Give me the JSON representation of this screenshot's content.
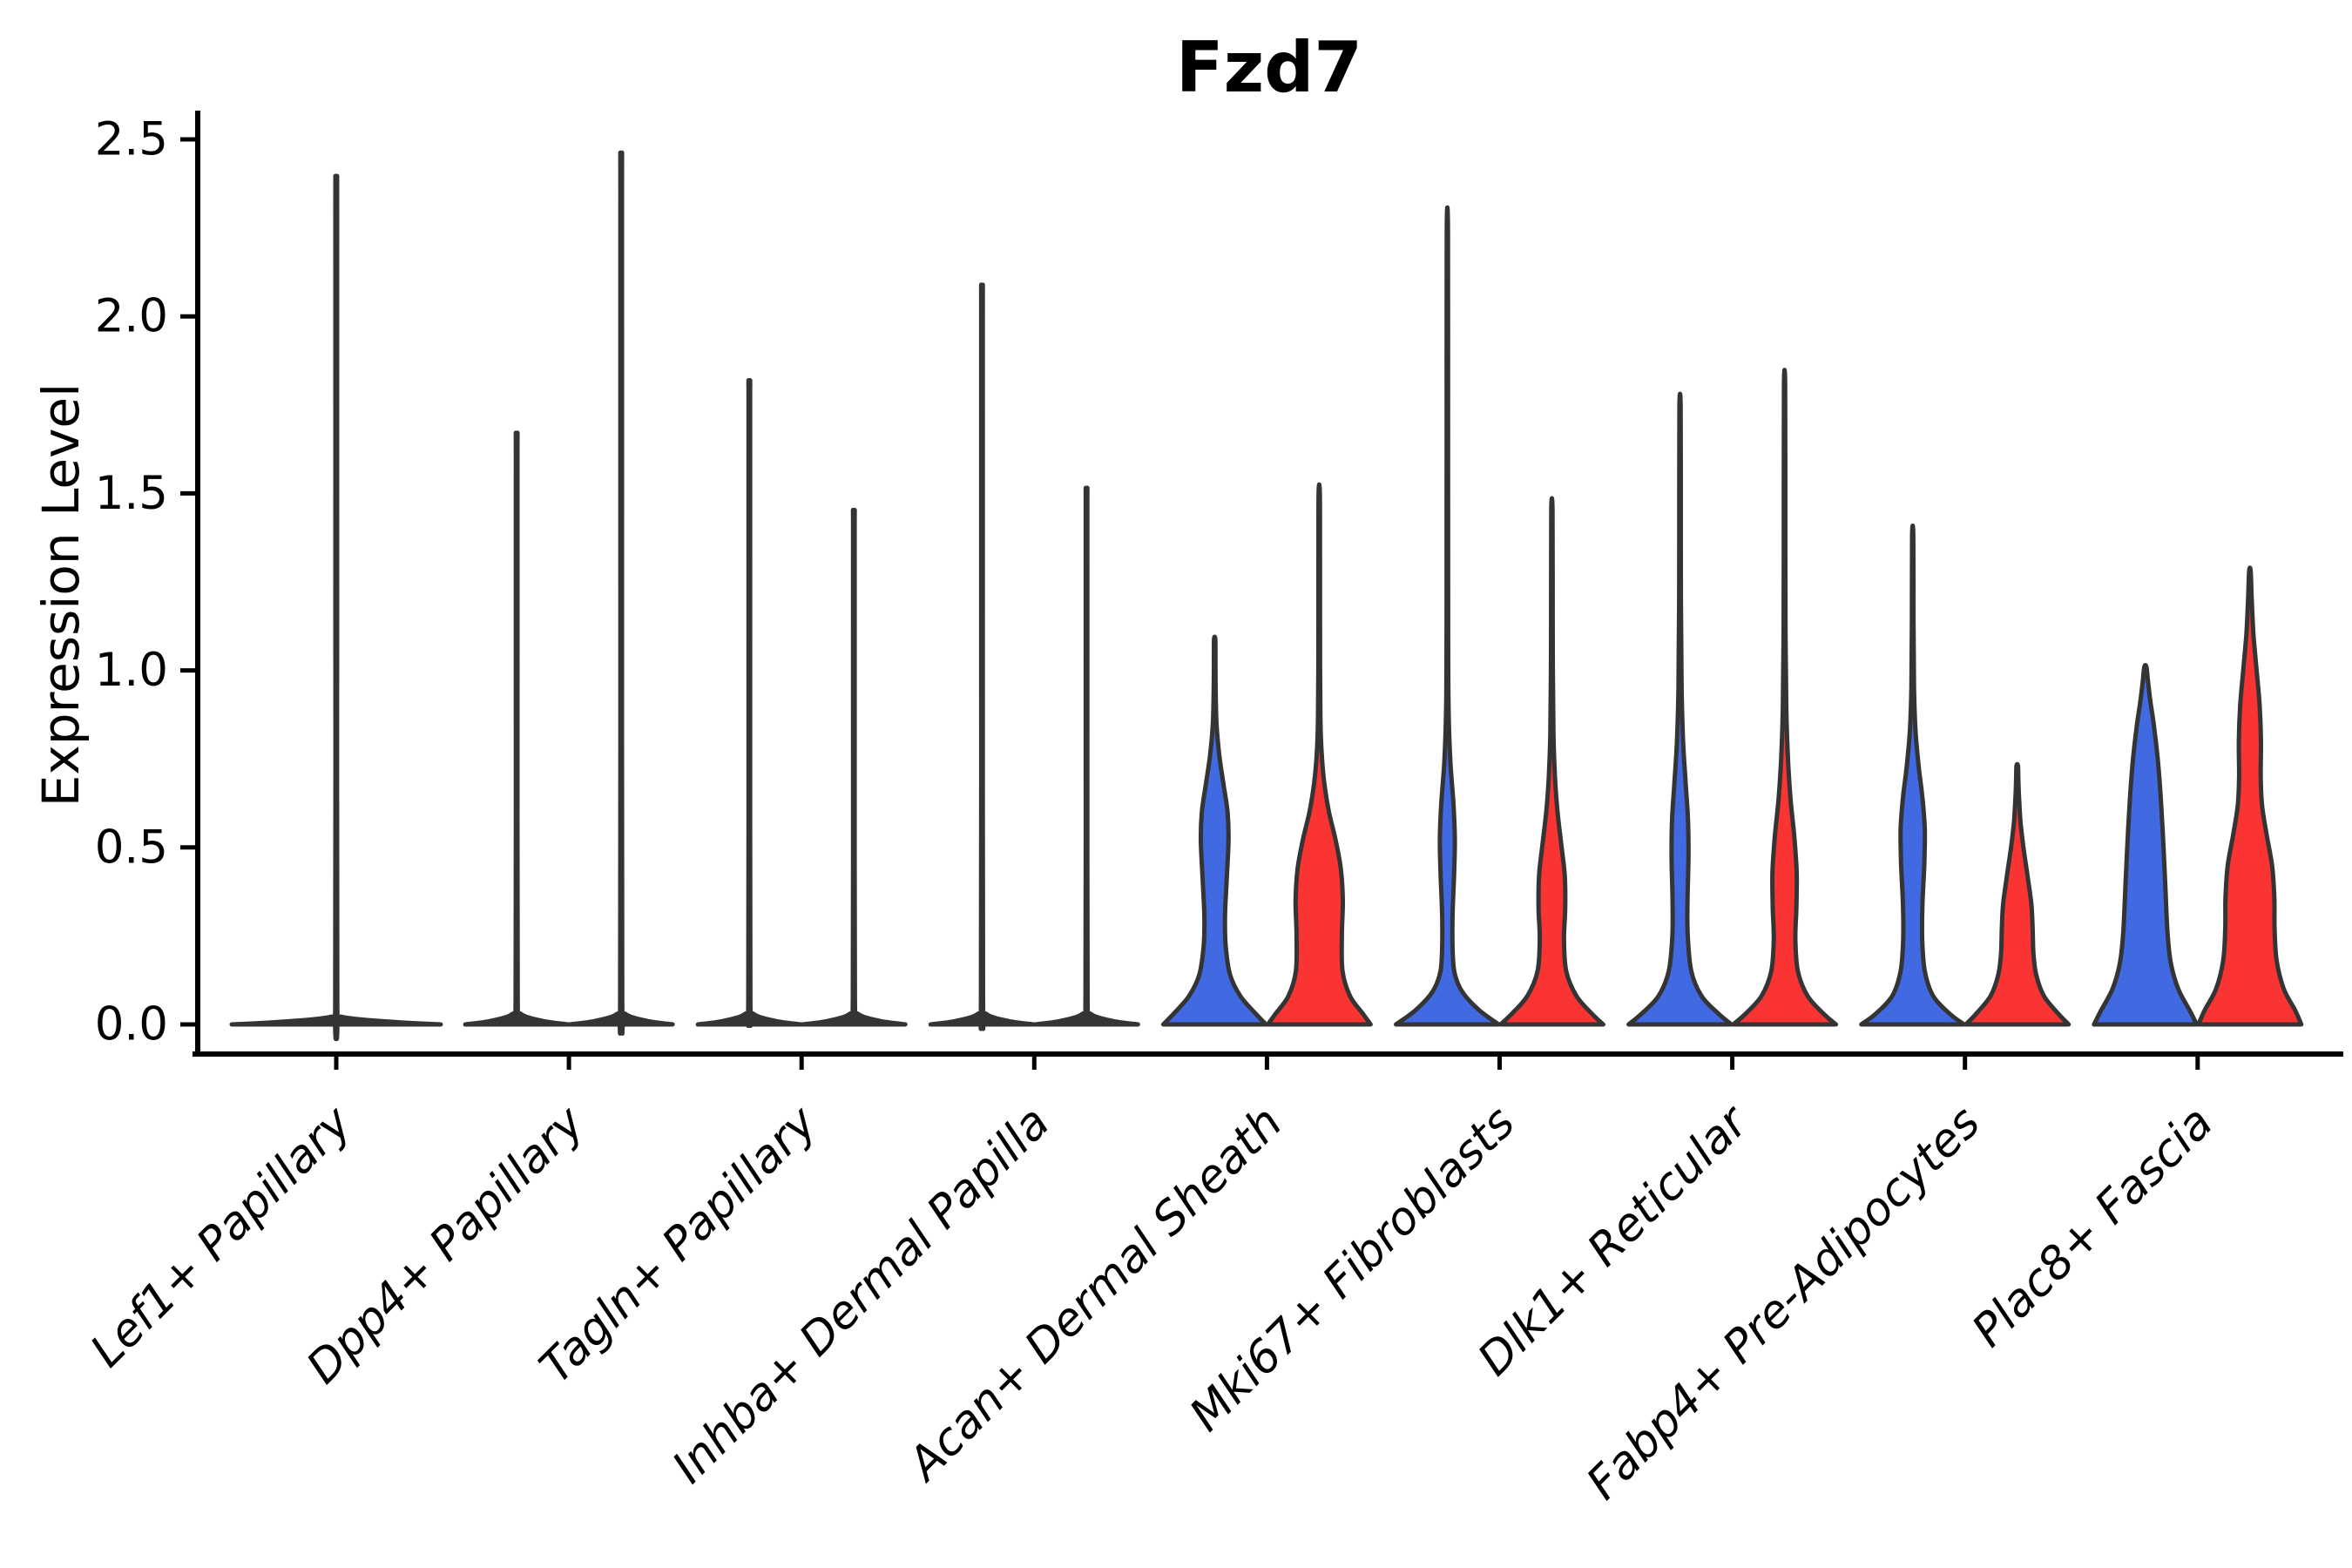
{
  "title": "Fzd7",
  "y_axis": {
    "label": "Expression Level",
    "tick_labels": [
      "0.0",
      "0.5",
      "1.0",
      "1.5",
      "2.0",
      "2.5"
    ],
    "tick_values": [
      0.0,
      0.5,
      1.0,
      1.5,
      2.0,
      2.5
    ],
    "range": [
      0.0,
      2.5
    ]
  },
  "x_axis": {
    "categories": [
      "Lef1+ Papillary",
      "Dpp4+ Papillary",
      "Tagln+ Papillary",
      "Inhba+ Dermal Papilla",
      "Acan+ Dermal Sheath",
      "Mki67+ Fibroblasts",
      "Dlk1+ Reticular",
      "Fabp4+ Pre-Adipocytes",
      "Plac8+ Fascia"
    ]
  },
  "style": {
    "blue": "#4169E1",
    "red": "#FA3333",
    "outline": "#343434",
    "spike_fill": "#343434",
    "background": "#ffffff",
    "text_color": "#000000"
  },
  "chart_data": {
    "type": "violin",
    "title": "Fzd7",
    "xlabel": "",
    "ylabel": "Expression Level",
    "ylim": [
      0.0,
      2.5
    ],
    "yticks": [
      0.0,
      0.5,
      1.0,
      1.5,
      2.0,
      2.5
    ],
    "grid": false,
    "legend": "none",
    "categories": [
      "Lef1+ Papillary",
      "Dpp4+ Papillary",
      "Tagln+ Papillary",
      "Inhba+ Dermal Papilla",
      "Acan+ Dermal Sheath",
      "Mki67+ Fibroblasts",
      "Dlk1+ Reticular",
      "Fabp4+ Pre-Adipocytes",
      "Plac8+ Fascia"
    ],
    "violins": [
      {
        "category_index": 0,
        "category": "Lef1+ Papillary",
        "position": "center",
        "color": "#343434",
        "max_expression": 2.34,
        "profile": [
          [
            0,
            1.0
          ],
          [
            0.008,
            0.5
          ],
          [
            0.022,
            0.05
          ],
          [
            0.05,
            0.01
          ],
          [
            1.17,
            0.008
          ],
          [
            2.3,
            0.008
          ],
          [
            2.34,
            0.007
          ]
        ]
      },
      {
        "category_index": 1,
        "category": "Dpp4+ Papillary",
        "position": "left",
        "color": "#343434",
        "max_expression": 1.64,
        "profile": [
          [
            0,
            1.0
          ],
          [
            0.01,
            0.5
          ],
          [
            0.03,
            0.08
          ],
          [
            0.07,
            0.02
          ],
          [
            0.82,
            0.016
          ],
          [
            1.6,
            0.016
          ],
          [
            1.64,
            0.013
          ]
        ]
      },
      {
        "category_index": 1,
        "category": "Dpp4+ Papillary",
        "position": "right",
        "color": "#343434",
        "max_expression": 2.41,
        "profile": [
          [
            0,
            1.0
          ],
          [
            0.01,
            0.5
          ],
          [
            0.03,
            0.08
          ],
          [
            0.07,
            0.02
          ],
          [
            1.2,
            0.016
          ],
          [
            2.36,
            0.016
          ],
          [
            2.41,
            0.013
          ]
        ]
      },
      {
        "category_index": 2,
        "category": "Tagln+ Papillary",
        "position": "left",
        "color": "#343434",
        "max_expression": 1.79,
        "profile": [
          [
            0,
            1.0
          ],
          [
            0.01,
            0.5
          ],
          [
            0.03,
            0.08
          ],
          [
            0.07,
            0.02
          ],
          [
            0.9,
            0.016
          ],
          [
            1.74,
            0.016
          ],
          [
            1.79,
            0.013
          ]
        ]
      },
      {
        "category_index": 2,
        "category": "Tagln+ Papillary",
        "position": "right",
        "color": "#343434",
        "max_expression": 1.43,
        "profile": [
          [
            0,
            1.0
          ],
          [
            0.01,
            0.5
          ],
          [
            0.03,
            0.08
          ],
          [
            0.07,
            0.02
          ],
          [
            0.72,
            0.016
          ],
          [
            1.39,
            0.016
          ],
          [
            1.43,
            0.013
          ]
        ]
      },
      {
        "category_index": 3,
        "category": "Inhba+ Dermal Papilla",
        "position": "left",
        "color": "#343434",
        "max_expression": 2.05,
        "profile": [
          [
            0,
            1.0
          ],
          [
            0.01,
            0.5
          ],
          [
            0.03,
            0.08
          ],
          [
            0.07,
            0.02
          ],
          [
            1.02,
            0.016
          ],
          [
            2.0,
            0.016
          ],
          [
            2.05,
            0.013
          ]
        ]
      },
      {
        "category_index": 3,
        "category": "Inhba+ Dermal Papilla",
        "position": "right",
        "color": "#343434",
        "max_expression": 1.49,
        "profile": [
          [
            0,
            1.0
          ],
          [
            0.01,
            0.5
          ],
          [
            0.03,
            0.08
          ],
          [
            0.07,
            0.02
          ],
          [
            0.75,
            0.016
          ],
          [
            1.45,
            0.016
          ],
          [
            1.49,
            0.013
          ]
        ]
      },
      {
        "category_index": 4,
        "category": "Acan+ Dermal Sheath",
        "position": "left",
        "color": "#4169E1",
        "max_expression": 1.09,
        "profile": [
          [
            0,
            1.0
          ],
          [
            0.03,
            0.8
          ],
          [
            0.08,
            0.5
          ],
          [
            0.14,
            0.3
          ],
          [
            0.22,
            0.215
          ],
          [
            0.3,
            0.2
          ],
          [
            0.4,
            0.23
          ],
          [
            0.52,
            0.27
          ],
          [
            0.6,
            0.25
          ],
          [
            0.68,
            0.17
          ],
          [
            0.76,
            0.09
          ],
          [
            0.85,
            0.035
          ],
          [
            0.95,
            0.018
          ],
          [
            1.05,
            0.015
          ],
          [
            1.09,
            0.012
          ]
        ]
      },
      {
        "category_index": 4,
        "category": "Acan+ Dermal Sheath",
        "position": "right",
        "color": "#FA3333",
        "max_expression": 1.5,
        "profile": [
          [
            0,
            1.0
          ],
          [
            0.03,
            0.85
          ],
          [
            0.08,
            0.6
          ],
          [
            0.15,
            0.455
          ],
          [
            0.25,
            0.44
          ],
          [
            0.35,
            0.46
          ],
          [
            0.44,
            0.42
          ],
          [
            0.52,
            0.32
          ],
          [
            0.6,
            0.19
          ],
          [
            0.68,
            0.1
          ],
          [
            0.76,
            0.05
          ],
          [
            0.85,
            0.025
          ],
          [
            1.0,
            0.017
          ],
          [
            1.3,
            0.015
          ],
          [
            1.5,
            0.012
          ]
        ]
      },
      {
        "category_index": 5,
        "category": "Mki67+ Fibroblasts",
        "position": "left",
        "color": "#4169E1",
        "max_expression": 2.24,
        "profile": [
          [
            0,
            1.0
          ],
          [
            0.04,
            0.62
          ],
          [
            0.09,
            0.3
          ],
          [
            0.14,
            0.15
          ],
          [
            0.2,
            0.105
          ],
          [
            0.3,
            0.1
          ],
          [
            0.42,
            0.13
          ],
          [
            0.52,
            0.145
          ],
          [
            0.62,
            0.12
          ],
          [
            0.74,
            0.06
          ],
          [
            0.88,
            0.025
          ],
          [
            1.1,
            0.016
          ],
          [
            1.7,
            0.014
          ],
          [
            2.24,
            0.012
          ]
        ]
      },
      {
        "category_index": 5,
        "category": "Mki67+ Fibroblasts",
        "position": "right",
        "color": "#FA3333",
        "max_expression": 1.46,
        "profile": [
          [
            0,
            1.0
          ],
          [
            0.03,
            0.78
          ],
          [
            0.08,
            0.48
          ],
          [
            0.15,
            0.28
          ],
          [
            0.24,
            0.235
          ],
          [
            0.33,
            0.26
          ],
          [
            0.42,
            0.25
          ],
          [
            0.5,
            0.19
          ],
          [
            0.6,
            0.11
          ],
          [
            0.7,
            0.06
          ],
          [
            0.82,
            0.03
          ],
          [
            1.0,
            0.018
          ],
          [
            1.25,
            0.015
          ],
          [
            1.46,
            0.012
          ]
        ]
      },
      {
        "category_index": 6,
        "category": "Dlk1+ Reticular",
        "position": "left",
        "color": "#4169E1",
        "max_expression": 1.75,
        "profile": [
          [
            0,
            1.0
          ],
          [
            0.03,
            0.75
          ],
          [
            0.08,
            0.42
          ],
          [
            0.15,
            0.22
          ],
          [
            0.25,
            0.15
          ],
          [
            0.35,
            0.145
          ],
          [
            0.47,
            0.165
          ],
          [
            0.58,
            0.155
          ],
          [
            0.68,
            0.11
          ],
          [
            0.8,
            0.06
          ],
          [
            0.95,
            0.03
          ],
          [
            1.2,
            0.017
          ],
          [
            1.5,
            0.015
          ],
          [
            1.75,
            0.012
          ]
        ]
      },
      {
        "category_index": 6,
        "category": "Dlk1+ Reticular",
        "position": "right",
        "color": "#FA3333",
        "max_expression": 1.81,
        "profile": [
          [
            0,
            1.0
          ],
          [
            0.03,
            0.76
          ],
          [
            0.08,
            0.45
          ],
          [
            0.15,
            0.26
          ],
          [
            0.24,
            0.21
          ],
          [
            0.33,
            0.23
          ],
          [
            0.43,
            0.235
          ],
          [
            0.53,
            0.19
          ],
          [
            0.63,
            0.12
          ],
          [
            0.74,
            0.07
          ],
          [
            0.88,
            0.035
          ],
          [
            1.1,
            0.018
          ],
          [
            1.5,
            0.015
          ],
          [
            1.81,
            0.012
          ]
        ]
      },
      {
        "category_index": 7,
        "category": "Fabp4+ Pre-Adipocytes",
        "position": "left",
        "color": "#4169E1",
        "max_expression": 1.38,
        "profile": [
          [
            0,
            1.0
          ],
          [
            0.03,
            0.72
          ],
          [
            0.08,
            0.4
          ],
          [
            0.15,
            0.235
          ],
          [
            0.24,
            0.185
          ],
          [
            0.34,
            0.19
          ],
          [
            0.45,
            0.225
          ],
          [
            0.55,
            0.235
          ],
          [
            0.64,
            0.19
          ],
          [
            0.73,
            0.115
          ],
          [
            0.83,
            0.055
          ],
          [
            0.95,
            0.025
          ],
          [
            1.15,
            0.016
          ],
          [
            1.38,
            0.012
          ]
        ]
      },
      {
        "category_index": 7,
        "category": "Fabp4+ Pre-Adipocytes",
        "position": "right",
        "color": "#FA3333",
        "max_expression": 0.73,
        "profile": [
          [
            0,
            1.0
          ],
          [
            0.03,
            0.8
          ],
          [
            0.08,
            0.52
          ],
          [
            0.14,
            0.37
          ],
          [
            0.2,
            0.315
          ],
          [
            0.27,
            0.3
          ],
          [
            0.34,
            0.275
          ],
          [
            0.42,
            0.2
          ],
          [
            0.5,
            0.12
          ],
          [
            0.57,
            0.065
          ],
          [
            0.64,
            0.035
          ],
          [
            0.69,
            0.022
          ],
          [
            0.73,
            0.015
          ]
        ]
      },
      {
        "category_index": 8,
        "category": "Plac8+ Fascia",
        "position": "left",
        "color": "#4169E1",
        "max_expression": 1.01,
        "profile": [
          [
            0,
            1.0
          ],
          [
            0.04,
            0.86
          ],
          [
            0.1,
            0.64
          ],
          [
            0.17,
            0.5
          ],
          [
            0.25,
            0.435
          ],
          [
            0.35,
            0.4
          ],
          [
            0.45,
            0.37
          ],
          [
            0.55,
            0.335
          ],
          [
            0.65,
            0.295
          ],
          [
            0.75,
            0.24
          ],
          [
            0.84,
            0.17
          ],
          [
            0.91,
            0.1
          ],
          [
            0.97,
            0.05
          ],
          [
            1.01,
            0.02
          ]
        ]
      },
      {
        "category_index": 8,
        "category": "Plac8+ Fascia",
        "position": "right",
        "color": "#FA3333",
        "max_expression": 1.28,
        "profile": [
          [
            0,
            1.0
          ],
          [
            0.04,
            0.88
          ],
          [
            0.1,
            0.66
          ],
          [
            0.18,
            0.52
          ],
          [
            0.27,
            0.48
          ],
          [
            0.36,
            0.475
          ],
          [
            0.45,
            0.43
          ],
          [
            0.54,
            0.32
          ],
          [
            0.62,
            0.235
          ],
          [
            0.7,
            0.21
          ],
          [
            0.8,
            0.215
          ],
          [
            0.9,
            0.19
          ],
          [
            1.0,
            0.13
          ],
          [
            1.1,
            0.07
          ],
          [
            1.2,
            0.035
          ],
          [
            1.28,
            0.015
          ]
        ]
      }
    ]
  }
}
